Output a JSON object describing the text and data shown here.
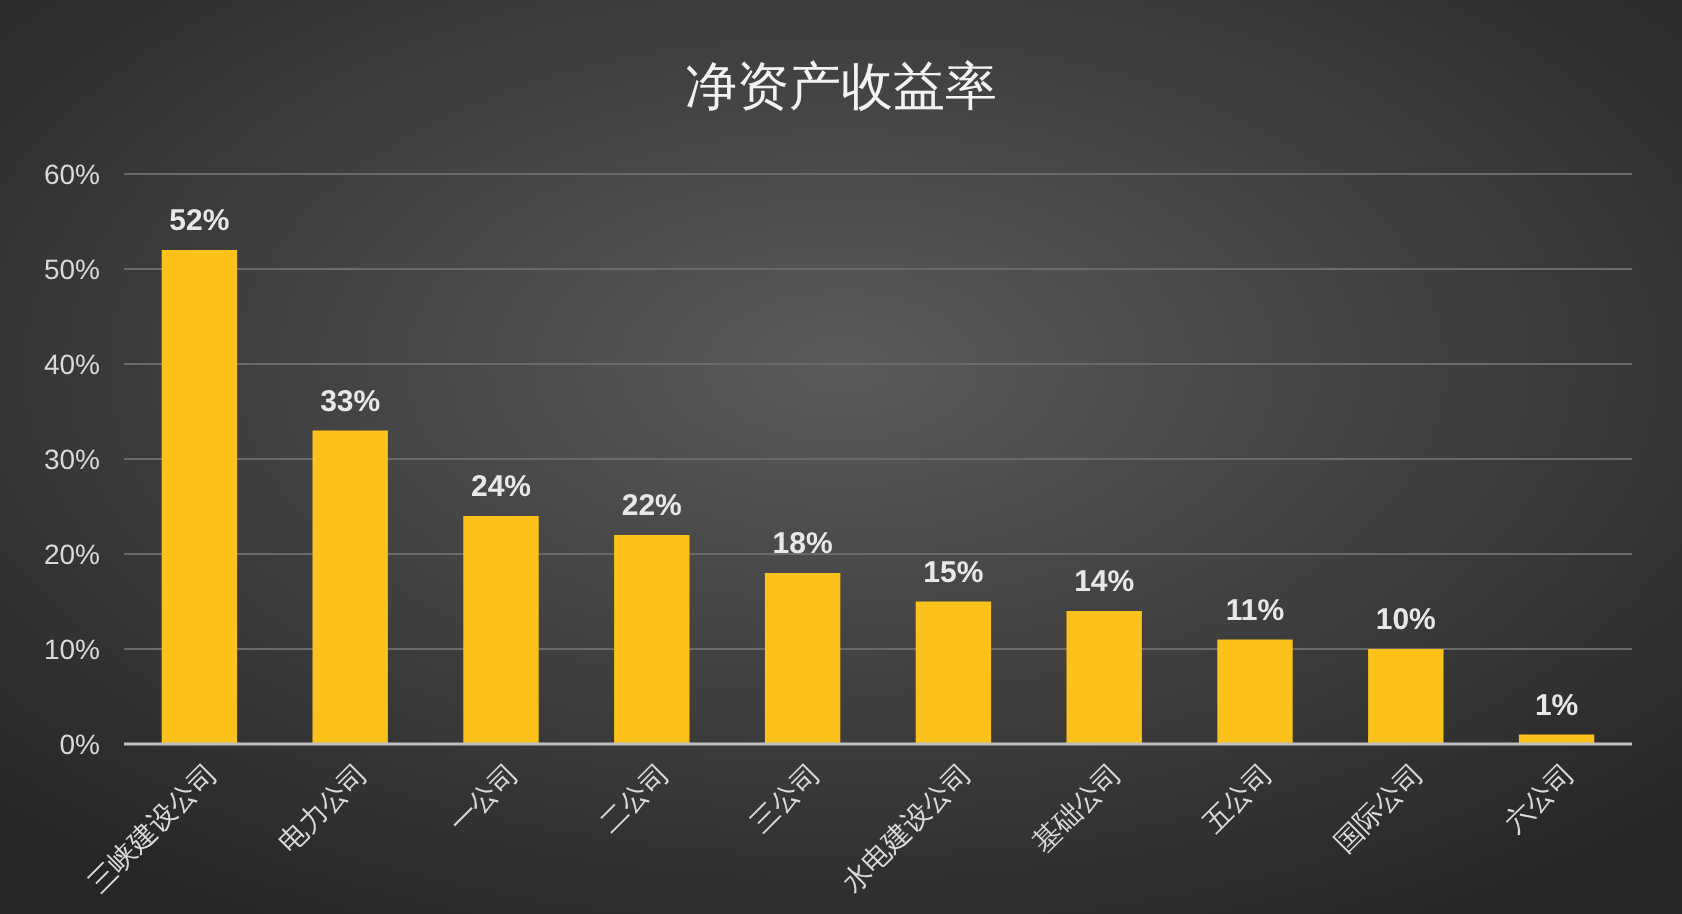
{
  "chart_data": {
    "type": "bar",
    "title": "净资产收益率",
    "categories": [
      "三峡建设公司",
      "电力公司",
      "一公司",
      "二公司",
      "三公司",
      "水电建设公司",
      "基础公司",
      "五公司",
      "国际公司",
      "六公司"
    ],
    "values": [
      52,
      33,
      24,
      22,
      18,
      15,
      14,
      11,
      10,
      1
    ],
    "value_labels": [
      "52%",
      "33%",
      "24%",
      "22%",
      "18%",
      "15%",
      "14%",
      "11%",
      "10%",
      "1%"
    ],
    "color": "#fcc21b",
    "ylim": [
      0,
      60
    ],
    "yticks": [
      {
        "value": 0,
        "label": "0%"
      },
      {
        "value": 10,
        "label": "10%"
      },
      {
        "value": 20,
        "label": "20%"
      },
      {
        "value": 30,
        "label": "30%"
      },
      {
        "value": 40,
        "label": "40%"
      },
      {
        "value": 50,
        "label": "50%"
      },
      {
        "value": 60,
        "label": "60%"
      }
    ],
    "grid": "y"
  }
}
